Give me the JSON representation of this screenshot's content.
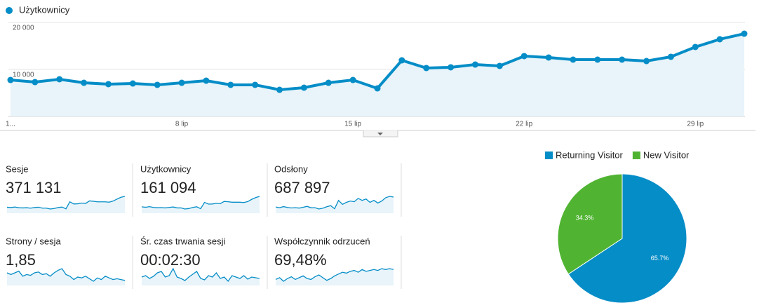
{
  "chart_data": [
    {
      "type": "line",
      "categories": [
        "1...",
        null,
        null,
        null,
        null,
        null,
        null,
        "8 lip",
        null,
        null,
        null,
        null,
        null,
        null,
        "15 lip",
        null,
        null,
        null,
        null,
        null,
        null,
        "22 lip",
        null,
        null,
        null,
        null,
        null,
        null,
        "29 lip",
        null,
        null
      ],
      "series": [
        {
          "name": "Użytkownicy",
          "color": "#058dc7",
          "values": [
            7760,
            7310,
            7910,
            7160,
            6870,
            7010,
            6720,
            7160,
            7610,
            6720,
            6720,
            5670,
            6120,
            7160,
            7760,
            5970,
            11940,
            10300,
            10450,
            11040,
            10750,
            12840,
            12540,
            12090,
            12090,
            12090,
            11790,
            12690,
            14780,
            16420,
            17610
          ]
        }
      ],
      "ylim": [
        0,
        20000
      ],
      "yticks": [
        {
          "value": 10000,
          "label": "10 000"
        },
        {
          "value": 20000,
          "label": "20 000"
        }
      ],
      "grid": true
    },
    {
      "type": "pie",
      "categories": [
        "Returning Visitor",
        "New Visitor"
      ],
      "values": [
        65.7,
        34.3
      ],
      "value_labels": [
        "65.7%",
        "34.3%"
      ],
      "colors": [
        "#058dc7",
        "#50b432"
      ],
      "legend": "top"
    }
  ],
  "metrics": [
    {
      "label": "Sesje",
      "value": "371 131",
      "sparkline": [
        10500,
        10300,
        10600,
        10200,
        10100,
        10200,
        10000,
        10300,
        10500,
        10000,
        10000,
        9500,
        9800,
        10300,
        10600,
        9600,
        13500,
        12300,
        12400,
        12800,
        12600,
        14000,
        13800,
        13500,
        13500,
        13500,
        13300,
        13900,
        15000,
        16000,
        16500
      ]
    },
    {
      "label": "Użytkownicy",
      "value": "161 094",
      "sparkline": [
        7760,
        7310,
        7910,
        7160,
        6870,
        7010,
        6720,
        7160,
        7610,
        6720,
        6720,
        5670,
        6120,
        7160,
        7760,
        5970,
        11940,
        10300,
        10450,
        11040,
        10750,
        12840,
        12540,
        12090,
        12090,
        12090,
        11790,
        12690,
        14780,
        16420,
        17610
      ]
    },
    {
      "label": "Odsłony",
      "value": "687 897",
      "sparkline": [
        19500,
        19000,
        19800,
        19200,
        18800,
        19000,
        18700,
        19300,
        20000,
        18900,
        19000,
        18000,
        18600,
        19700,
        20500,
        18200,
        24500,
        21500,
        23000,
        24000,
        23500,
        26000,
        24500,
        25500,
        23000,
        24500,
        22500,
        24000,
        26500,
        27500,
        27000
      ]
    },
    {
      "label": "Strony / sesja",
      "value": "1,85",
      "sparkline": [
        1.9,
        1.88,
        1.9,
        1.92,
        1.86,
        1.88,
        1.87,
        1.9,
        1.91,
        1.88,
        1.89,
        1.86,
        1.9,
        1.93,
        1.95,
        1.88,
        1.86,
        1.82,
        1.85,
        1.84,
        1.86,
        1.83,
        1.8,
        1.84,
        1.82,
        1.86,
        1.84,
        1.82,
        1.83,
        1.82,
        1.81
      ]
    },
    {
      "label": "Śr. czas trwania sesji",
      "value": "00:02:30",
      "sparkline": [
        150,
        152,
        148,
        151,
        156,
        158,
        150,
        152,
        162,
        150,
        148,
        145,
        150,
        154,
        158,
        148,
        146,
        152,
        150,
        156,
        148,
        150,
        144,
        152,
        150,
        148,
        152,
        147,
        150,
        149,
        148
      ]
    },
    {
      "label": "Współczynnik odrzuceń",
      "value": "69,48%",
      "sparkline": [
        69,
        69.2,
        68.8,
        69.1,
        69.3,
        69,
        69.2,
        69.4,
        69.1,
        69,
        69.3,
        69.5,
        69.2,
        68.9,
        69.1,
        69.4,
        69.6,
        69.8,
        69.7,
        69.9,
        70,
        69.8,
        70.1,
        69.9,
        70,
        70.1,
        70,
        70.2,
        70.1,
        70.2,
        70.1
      ]
    }
  ]
}
